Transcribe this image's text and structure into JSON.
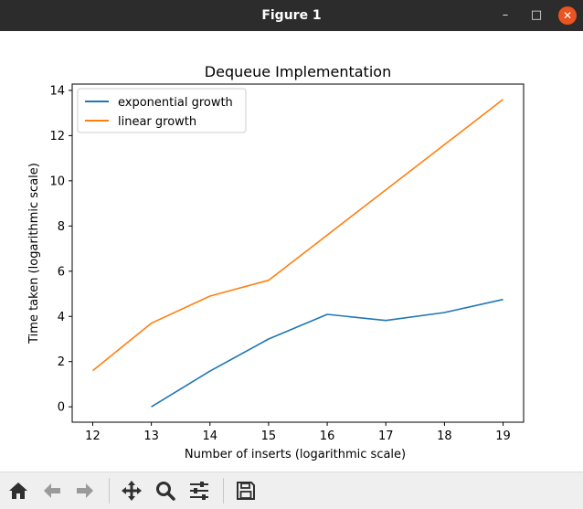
{
  "window": {
    "title": "Figure 1",
    "controls": {
      "minimize": "–",
      "maximize": "□",
      "close": "✕"
    }
  },
  "toolbar": {
    "items": [
      "home-icon",
      "back-arrow-icon",
      "forward-arrow-icon",
      "pan-icon",
      "zoom-icon",
      "configure-subplots-icon",
      "save-icon"
    ]
  },
  "chart_data": {
    "type": "line",
    "title": "Dequeue Implementation",
    "xlabel": "Number of inserts (logarithmic scale)",
    "ylabel": "Time taken (logarithmic scale)",
    "xlim": [
      11.65,
      19.35
    ],
    "ylim": [
      -0.68,
      14.28
    ],
    "xticks": [
      12,
      13,
      14,
      15,
      16,
      17,
      18,
      19
    ],
    "yticks": [
      0,
      2,
      4,
      6,
      8,
      10,
      12,
      14
    ],
    "grid": false,
    "legend_position": "top-left",
    "series": [
      {
        "name": "exponential growth",
        "color": "#1f77b4",
        "x": [
          13,
          14,
          15,
          16,
          17,
          18,
          19
        ],
        "y": [
          0.0,
          1.58,
          3.0,
          4.09,
          3.82,
          4.17,
          4.75
        ]
      },
      {
        "name": "linear growth",
        "color": "#ff7f0e",
        "x": [
          12,
          13,
          14,
          15,
          16,
          17,
          18,
          19
        ],
        "y": [
          1.6,
          3.7,
          4.9,
          5.6,
          7.6,
          9.6,
          11.6,
          13.6
        ]
      }
    ]
  }
}
